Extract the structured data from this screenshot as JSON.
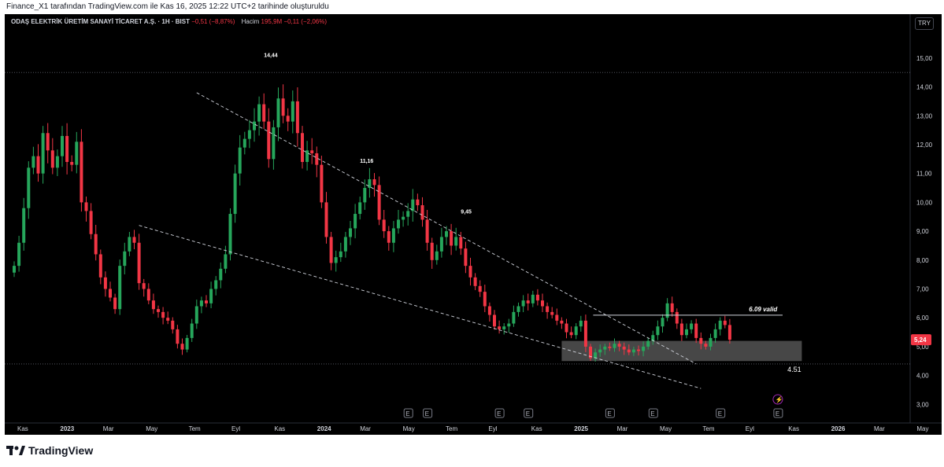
{
  "attribution": "Finance_X1 tarafından TradingView.com ile Kas 16, 2025 12:22 UTC+2 tarihinde oluşturuldu",
  "header": {
    "symbol": "ODAŞ ELEKTRİK ÜRETİM SANAYİ TİCARET A.Ş. · 1H · BIST",
    "change": "−0,51 (−8,87%)",
    "volume_label": "Hacim",
    "volume_value": "195,9M",
    "volume_change": "−0,11 (−2,06%)"
  },
  "currency_button": "TRY",
  "brand": "TradingView",
  "colors": {
    "up": "#26a65b",
    "down": "#f23645",
    "background": "#000000",
    "text": "#d1d4dc"
  },
  "chart_data": {
    "type": "candlestick",
    "y_axis": {
      "range": [
        2.6,
        15.35
      ],
      "ticks": [
        "15,00",
        "14,00",
        "13,00",
        "12,00",
        "11,00",
        "10,00",
        "9,00",
        "8,00",
        "7,00",
        "6,00",
        "5,00",
        "4,00",
        "3,00"
      ]
    },
    "x_axis": {
      "labels": [
        "Kas",
        "2023",
        "Mar",
        "May",
        "Tem",
        "Eyl",
        "Kas",
        "2024",
        "Mar",
        "May",
        "Tem",
        "Eyl",
        "Kas",
        "2025",
        "Mar",
        "May",
        "Tem",
        "Eyl",
        "Kas",
        "2026",
        "Mar",
        "May"
      ]
    },
    "closes": [
      7.8,
      8.6,
      9.8,
      11.2,
      11.6,
      11.0,
      12.4,
      11.8,
      11.2,
      11.6,
      12.3,
      11.4,
      11.3,
      12.1,
      10.0,
      9.7,
      8.9,
      8.2,
      7.4,
      7.0,
      6.7,
      6.3,
      7.8,
      8.3,
      8.8,
      8.6,
      7.2,
      7.0,
      6.6,
      6.3,
      6.2,
      6.0,
      5.9,
      5.6,
      5.1,
      4.9,
      5.3,
      5.8,
      6.4,
      6.6,
      6.5,
      7.0,
      7.3,
      7.7,
      8.2,
      9.6,
      11.0,
      11.9,
      12.2,
      12.5,
      12.8,
      13.4,
      12.8,
      11.5,
      12.6,
      13.6,
      13.0,
      12.8,
      13.5,
      12.4,
      11.4,
      11.8,
      11.7,
      11.3,
      10.0,
      8.8,
      7.9,
      8.1,
      8.3,
      8.8,
      9.1,
      9.6,
      10.0,
      10.5,
      10.8,
      10.6,
      9.4,
      9.0,
      8.6,
      9.1,
      9.4,
      9.5,
      9.7,
      10.1,
      9.9,
      9.4,
      8.6,
      8.0,
      8.3,
      8.8,
      9.0,
      8.5,
      8.8,
      8.4,
      7.8,
      7.4,
      7.1,
      6.9,
      6.4,
      6.1,
      5.7,
      5.6,
      5.7,
      5.8,
      6.2,
      6.4,
      6.6,
      6.5,
      6.8,
      6.6,
      6.4,
      6.2,
      6.1,
      5.9,
      5.8,
      5.5,
      5.4,
      5.7,
      5.9,
      5.0,
      4.6,
      4.8,
      4.9,
      5.0,
      4.95,
      5.1,
      5.0,
      4.9,
      4.8,
      4.9,
      4.85,
      5.0,
      5.2,
      5.4,
      5.7,
      6.0,
      6.5,
      6.2,
      5.8,
      5.4,
      5.6,
      5.8,
      5.3,
      5.1,
      5.0,
      5.3,
      5.6,
      5.9,
      5.75,
      5.24
    ],
    "annotations": [
      {
        "text": "14,44",
        "x": "Eyl 2023",
        "y": 14.44
      },
      {
        "text": "11,16",
        "x": "Mar 2024",
        "y": 11.16
      },
      {
        "text": "9,45",
        "x": "Haz 2024",
        "y": 9.45
      },
      {
        "text": "6.09 valid",
        "y": 6.09
      },
      {
        "text": "4.51",
        "y": 4.51
      }
    ],
    "horizontal_lines": [
      14.5,
      4.4
    ],
    "support_zone": [
      4.5,
      5.2
    ],
    "trendlines": [
      {
        "from": [
          "May 2023",
          13.8
        ],
        "to": [
          "Tem 2025",
          4.4
        ]
      },
      {
        "from": [
          "Kas 2022",
          9.2
        ],
        "to": [
          "Eyl 2025",
          3.5
        ]
      }
    ],
    "last_price": "5,24",
    "event_markers": [
      "E",
      "E",
      "E",
      "E",
      "E",
      "E",
      "E",
      "E"
    ],
    "lightning_marker": "⚡"
  }
}
